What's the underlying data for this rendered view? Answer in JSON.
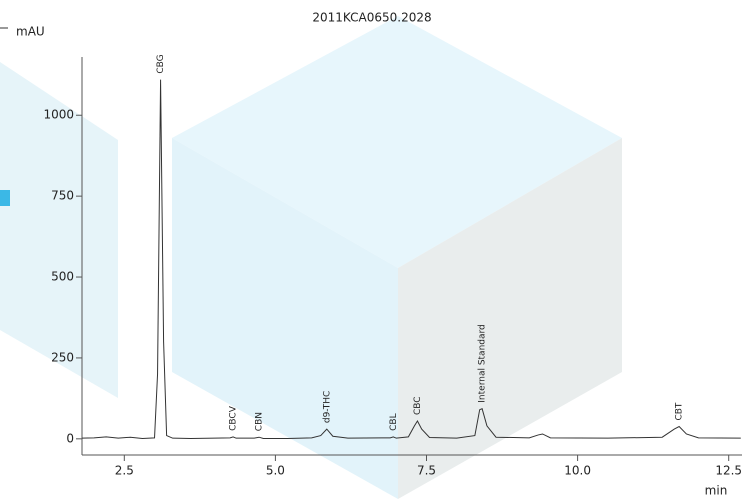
{
  "chart_data": {
    "type": "line",
    "title": "2011KCA0650.2028",
    "y_label": "mAU",
    "x_label": "min",
    "x": [
      1.8,
      2.0,
      2.2,
      2.4,
      2.6,
      2.8,
      3.0,
      3.05,
      3.1,
      3.15,
      3.2,
      3.3,
      3.6,
      4.0,
      4.25,
      4.3,
      4.35,
      4.65,
      4.73,
      4.8,
      5.2,
      5.6,
      5.75,
      5.85,
      5.95,
      6.2,
      6.9,
      6.95,
      7.0,
      7.2,
      7.3,
      7.35,
      7.42,
      7.55,
      8.0,
      8.3,
      8.38,
      8.42,
      8.5,
      8.65,
      9.2,
      9.35,
      9.42,
      9.55,
      10.5,
      11.4,
      11.6,
      11.68,
      11.8,
      12.0,
      12.7
    ],
    "series": [
      {
        "color": "#333333",
        "values": [
          2,
          3,
          6,
          2,
          5,
          1,
          3,
          200,
          1110,
          300,
          10,
          2,
          1,
          2,
          3,
          6,
          2,
          2,
          5,
          1,
          1,
          3,
          10,
          30,
          8,
          2,
          3,
          6,
          2,
          6,
          40,
          55,
          30,
          4,
          2,
          10,
          90,
          93,
          40,
          5,
          3,
          12,
          15,
          3,
          2,
          5,
          30,
          38,
          15,
          3,
          2
        ]
      }
    ],
    "annotations": [
      {
        "text": "CBG",
        "x": 3.1
      },
      {
        "text": "CBCV",
        "x": 4.3
      },
      {
        "text": "CBN",
        "x": 4.73
      },
      {
        "text": "d9-THC",
        "x": 5.85
      },
      {
        "text": "CBL",
        "x": 6.95
      },
      {
        "text": "CBC",
        "x": 7.35
      },
      {
        "text": "Internal Standard",
        "x": 8.42
      },
      {
        "text": "CBT",
        "x": 11.68
      }
    ],
    "xlim": [
      1.8,
      12.72
    ],
    "ylim": [
      -50,
      1180
    ],
    "xticks": [
      2.5,
      {
        "value": 5,
        "label": "5.0"
      },
      7.5,
      {
        "value": 10,
        "label": "10.0"
      },
      12.5
    ],
    "yticks": [
      0,
      250,
      500,
      750,
      1000
    ]
  }
}
